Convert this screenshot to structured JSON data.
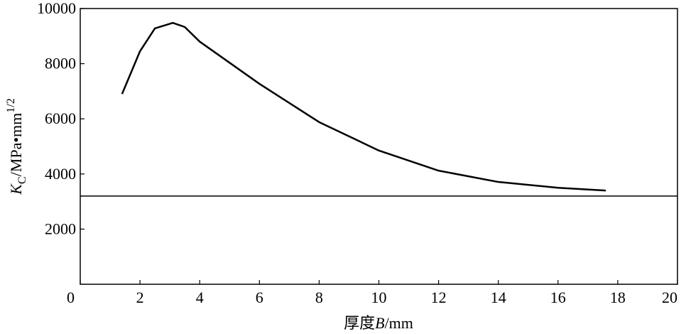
{
  "chart_data": {
    "type": "line",
    "x_label": [
      "厚度",
      "B",
      "/mm"
    ],
    "y_label": [
      "K",
      "C",
      "/MPa•mm",
      "1/2"
    ],
    "x": [
      1.4,
      2.0,
      2.5,
      3.1,
      3.5,
      4.0,
      6,
      8,
      10,
      12,
      14,
      16,
      17.6
    ],
    "series": [
      {
        "color": "#000000",
        "values": [
          6900,
          8450,
          9280,
          9480,
          9330,
          8800,
          7270,
          5880,
          4850,
          4120,
          3710,
          3500,
          3400
        ]
      }
    ],
    "hline": 3200,
    "xlim": [
      0,
      20
    ],
    "ylim": [
      0,
      10000
    ],
    "xticks": [
      0,
      2,
      4,
      6,
      8,
      10,
      12,
      14,
      16,
      18,
      20
    ],
    "yticks": [
      2000,
      4000,
      6000,
      8000,
      10000
    ]
  }
}
